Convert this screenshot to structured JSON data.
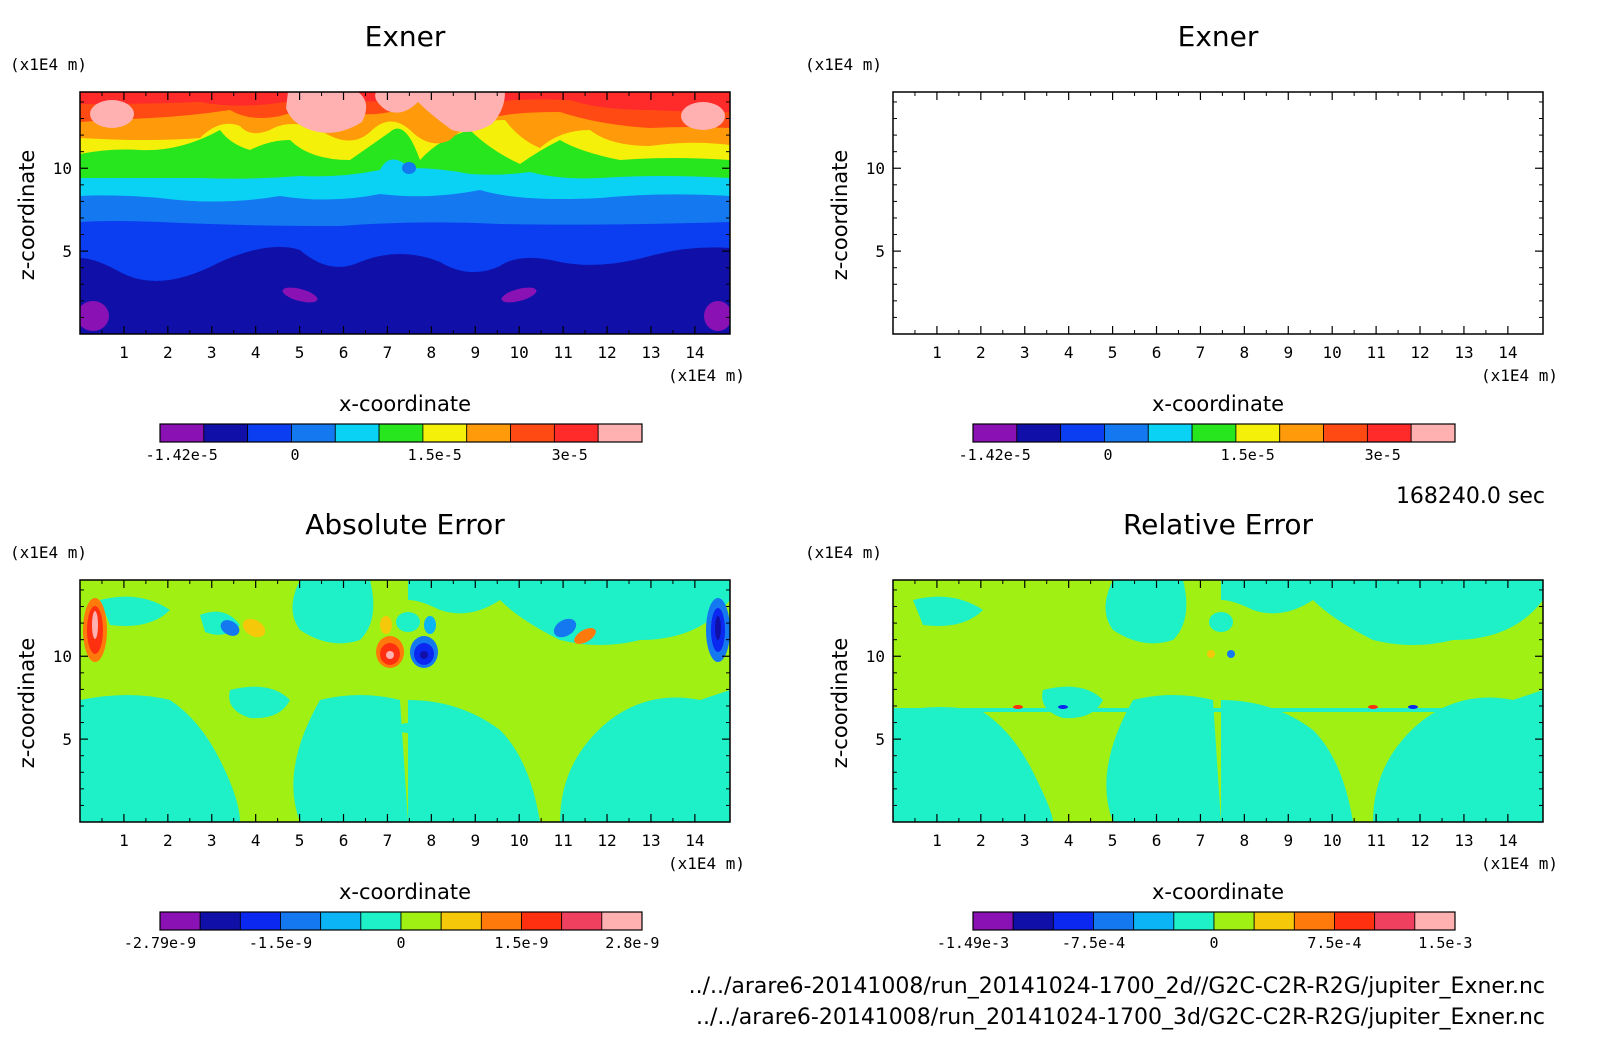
{
  "colors": {
    "exner": [
      "#8a12b4",
      "#1010a8",
      "#0a3ef0",
      "#1478f0",
      "#0ad2f5",
      "#28e61e",
      "#f5f00a",
      "#ff9a0a",
      "#ff4a14",
      "#ff2a2a",
      "#ffb0b0"
    ],
    "error": [
      "#8a12b4",
      "#1010a8",
      "#0a28f0",
      "#1478f0",
      "#0ab4f5",
      "#1ef0c8",
      "#a0f014",
      "#f5c80a",
      "#ff7a0a",
      "#ff3010",
      "#f04060",
      "#ffb0b0"
    ]
  },
  "chart_data": [
    {
      "type": "heatmap",
      "title": "Exner",
      "xlabel": "x-coordinate",
      "ylabel": "z-coordinate",
      "x_unit": "(x1E4 m)",
      "y_unit": "(x1E4 m)",
      "xlim": [
        0,
        14.8
      ],
      "ylim": [
        0,
        14.6
      ],
      "x_ticks": [
        "1",
        "2",
        "3",
        "4",
        "5",
        "6",
        "7",
        "8",
        "9",
        "10",
        "11",
        "12",
        "13",
        "14"
      ],
      "y_ticks": [
        "5",
        "10"
      ],
      "colorbar_labels": [
        "-1.42e-5",
        "0",
        "1.5e-5",
        "3e-5"
      ],
      "colorbar_levels": 11
    },
    {
      "type": "heatmap",
      "title": "Exner",
      "xlabel": "x-coordinate",
      "ylabel": "z-coordinate",
      "x_unit": "(x1E4 m)",
      "y_unit": "(x1E4 m)",
      "xlim": [
        0,
        14.8
      ],
      "ylim": [
        0,
        14.6
      ],
      "x_ticks": [
        "1",
        "2",
        "3",
        "4",
        "5",
        "6",
        "7",
        "8",
        "9",
        "10",
        "11",
        "12",
        "13",
        "14"
      ],
      "y_ticks": [
        "5",
        "10"
      ],
      "colorbar_labels": [
        "-1.42e-5",
        "0",
        "1.5e-5",
        "3e-5"
      ],
      "colorbar_levels": 11
    },
    {
      "type": "heatmap",
      "title": "Absolute Error",
      "xlabel": "x-coordinate",
      "ylabel": "z-coordinate",
      "x_unit": "(x1E4 m)",
      "y_unit": "(x1E4 m)",
      "xlim": [
        0,
        14.8
      ],
      "ylim": [
        0,
        14.6
      ],
      "x_ticks": [
        "1",
        "2",
        "3",
        "4",
        "5",
        "6",
        "7",
        "8",
        "9",
        "10",
        "11",
        "12",
        "13",
        "14"
      ],
      "y_ticks": [
        "5",
        "10"
      ],
      "colorbar_labels": [
        "-2.79e-9",
        "-1.5e-9",
        "0",
        "1.5e-9",
        "2.8e-9"
      ],
      "colorbar_levels": 12
    },
    {
      "type": "heatmap",
      "title": "Relative Error",
      "xlabel": "x-coordinate",
      "ylabel": "z-coordinate",
      "x_unit": "(x1E4 m)",
      "y_unit": "(x1E4 m)",
      "xlim": [
        0,
        14.8
      ],
      "ylim": [
        0,
        14.6
      ],
      "x_ticks": [
        "1",
        "2",
        "3",
        "4",
        "5",
        "6",
        "7",
        "8",
        "9",
        "10",
        "11",
        "12",
        "13",
        "14"
      ],
      "y_ticks": [
        "5",
        "10"
      ],
      "colorbar_labels": [
        "-1.49e-3",
        "-7.5e-4",
        "0",
        "7.5e-4",
        "1.5e-3"
      ],
      "colorbar_levels": 12
    }
  ],
  "time_label": "168240.0 sec",
  "file_2d": "../../arare6-20141008/run_20141024-1700_2d//G2C-C2R-R2G/jupiter_Exner.nc",
  "file_3d": "../../arare6-20141008/run_20141024-1700_3d/G2C-C2R-R2G/jupiter_Exner.nc"
}
